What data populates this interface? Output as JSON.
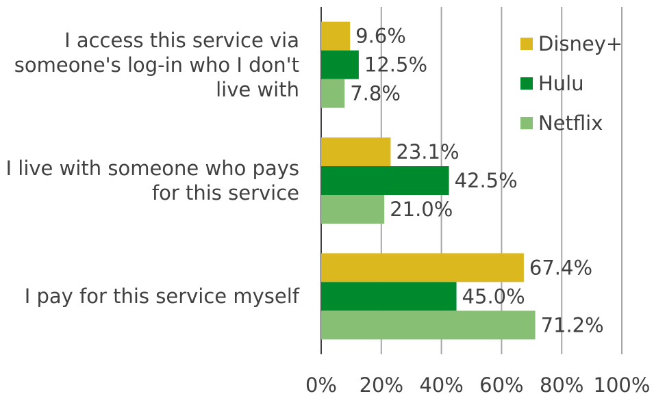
{
  "chart_data": {
    "type": "bar",
    "orientation": "horizontal",
    "categories": [
      "I access this service via someone's log-in who I don't live with",
      "I live with someone who pays for this service",
      "I pay for this service myself"
    ],
    "series": [
      {
        "name": "Disney+",
        "color": "#dcb81f",
        "values": [
          9.6,
          23.1,
          67.4
        ],
        "value_labels": [
          "9.6%",
          "23.1%",
          "67.4%"
        ]
      },
      {
        "name": "Hulu",
        "color": "#008a2e",
        "values": [
          12.5,
          42.5,
          45.0
        ],
        "value_labels": [
          "12.5%",
          "42.5%",
          "45.0%"
        ]
      },
      {
        "name": "Netflix",
        "color": "#87bf74",
        "values": [
          7.8,
          21.0,
          71.2
        ],
        "value_labels": [
          "7.8%",
          "21.0%",
          "71.2%"
        ]
      }
    ],
    "xlim": [
      0,
      100
    ],
    "xticks": [
      {
        "value": 0,
        "label": "0%"
      },
      {
        "value": 20,
        "label": "20%"
      },
      {
        "value": 40,
        "label": "40%"
      },
      {
        "value": 60,
        "label": "60%"
      },
      {
        "value": 80,
        "label": "80%"
      },
      {
        "value": 100,
        "label": "100%"
      }
    ],
    "grid": true,
    "legend": "upper right"
  }
}
